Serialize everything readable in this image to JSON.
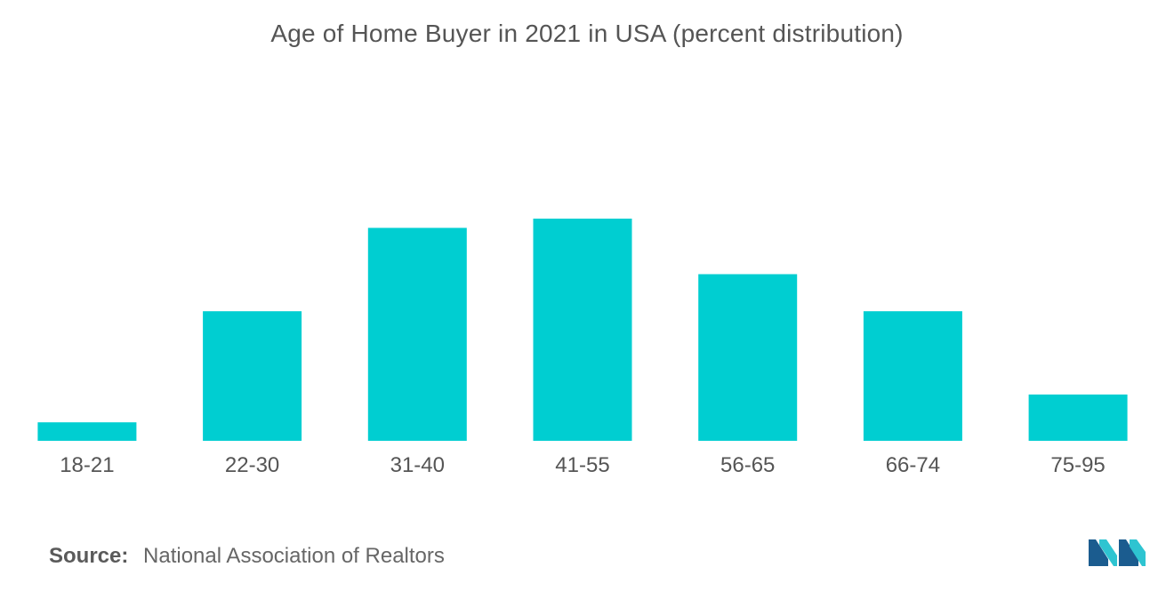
{
  "chart_data": {
    "type": "bar",
    "title": "Age of Home Buyer in 2021 in USA (percent distribution)",
    "xlabel": "",
    "ylabel": "",
    "categories": [
      "18-21",
      "22-30",
      "31-40",
      "41-55",
      "56-65",
      "66-74",
      "75-95"
    ],
    "values": [
      2,
      14,
      23,
      24,
      18,
      14,
      5
    ],
    "ylim": [
      0,
      24
    ],
    "grid": false,
    "bar_color": "#00CED1"
  },
  "source": {
    "label": "Source:",
    "text": "National Association of Realtors"
  },
  "logo": {
    "icon": "mordor-intelligence-logo",
    "colors": [
      "#1B5C8F",
      "#2EC4D1"
    ]
  }
}
